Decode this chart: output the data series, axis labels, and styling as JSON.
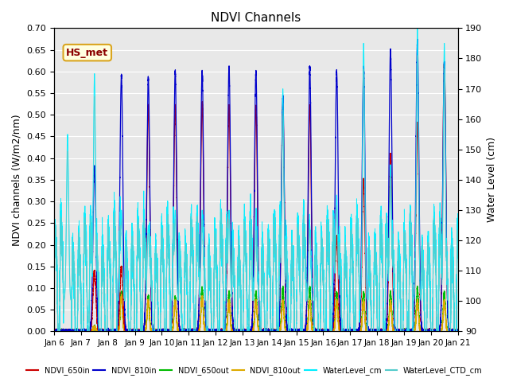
{
  "title": "NDVI Channels",
  "ylabel_left": "NDVI channels (W/m2/nm)",
  "ylabel_right": "Water Level (cm)",
  "ylim_left": [
    0.0,
    0.7
  ],
  "ylim_right": [
    90,
    190
  ],
  "xtick_labels": [
    "Jan 6",
    "Jan 7",
    "Jan 8",
    "Jan 9",
    "Jan 10",
    "Jan 11",
    "Jan 12",
    "Jan 13",
    "Jan 14",
    "Jan 15",
    "Jan 16",
    "Jan 17",
    "Jan 18",
    "Jan 19",
    "Jan 20",
    "Jan 21"
  ],
  "legend_label": "HS_met",
  "series_colors": {
    "NDVI_650in": "#cc0000",
    "NDVI_810in": "#0000cc",
    "NDVI_650out": "#00bb00",
    "NDVI_810out": "#ddaa00",
    "WaterLevel_cm": "#00eeff",
    "WaterLevel_CTD_cm": "#55cccc"
  },
  "plot_bg_color": "#e8e8e8"
}
